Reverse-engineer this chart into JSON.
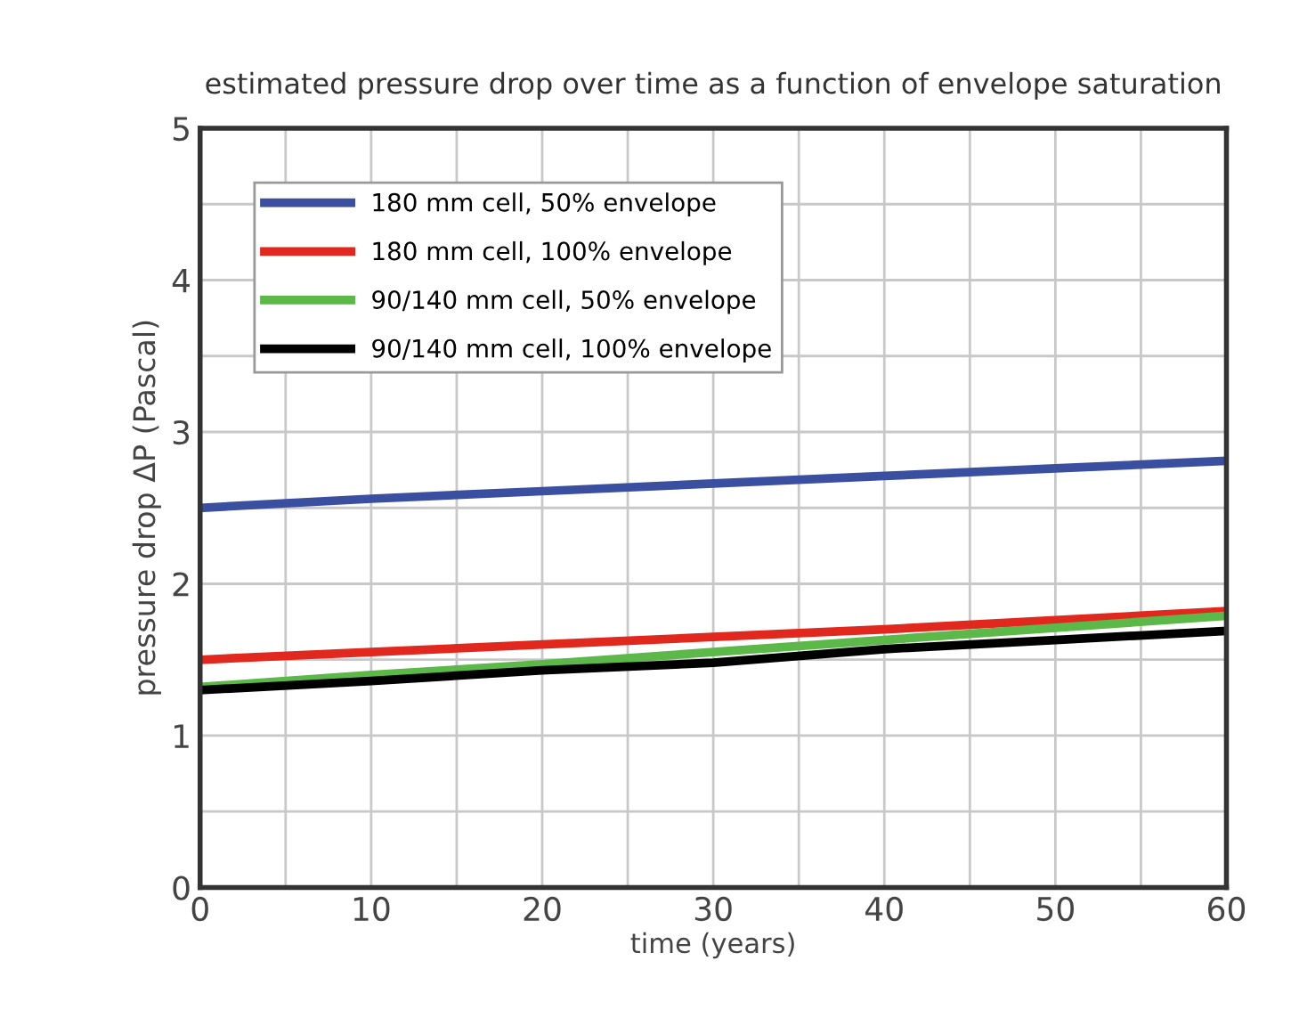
{
  "chart_data": {
    "type": "line",
    "title": "estimated pressure drop over time as a function of envelope saturation",
    "xlabel": "time (years)",
    "ylabel": "pressure drop ΔP (Pascal)",
    "x": [
      0,
      10,
      20,
      30,
      40,
      50,
      60
    ],
    "series": [
      {
        "name": "180 mm cell, 50% envelope",
        "color": "#3a4fa0",
        "values": [
          2.5,
          2.56,
          2.61,
          2.66,
          2.71,
          2.76,
          2.81
        ]
      },
      {
        "name": "180 mm cell, 100% envelope",
        "color": "#e0281e",
        "values": [
          1.5,
          1.55,
          1.6,
          1.65,
          1.7,
          1.76,
          1.82
        ]
      },
      {
        "name": "90/140 mm cell, 50% envelope",
        "color": "#5cb848",
        "values": [
          1.32,
          1.4,
          1.47,
          1.55,
          1.63,
          1.71,
          1.79
        ]
      },
      {
        "name": "90/140 mm cell, 100% envelope",
        "color": "#000000",
        "values": [
          1.3,
          1.36,
          1.43,
          1.48,
          1.57,
          1.63,
          1.69
        ]
      }
    ],
    "xlim": [
      0,
      60
    ],
    "ylim": [
      0,
      5
    ],
    "xticks": [
      0,
      {
        "value": 5,
        "label": null
      },
      10,
      {
        "value": 15,
        "label": null
      },
      20,
      {
        "value": 25,
        "label": null
      },
      30,
      {
        "value": 35,
        "label": null
      },
      40,
      {
        "value": 45,
        "label": null
      },
      50,
      {
        "value": 55,
        "label": null
      },
      60
    ],
    "yticks": [
      0,
      {
        "value": 0.5,
        "label": null
      },
      1,
      {
        "value": 1.5,
        "label": null
      },
      2,
      {
        "value": 2.5,
        "label": null
      },
      3,
      {
        "value": 3.5,
        "label": null
      },
      4,
      {
        "value": 4.5,
        "label": null
      },
      5
    ],
    "grid": true,
    "legend": "top left",
    "marker": "none",
    "line_style": "solid"
  }
}
